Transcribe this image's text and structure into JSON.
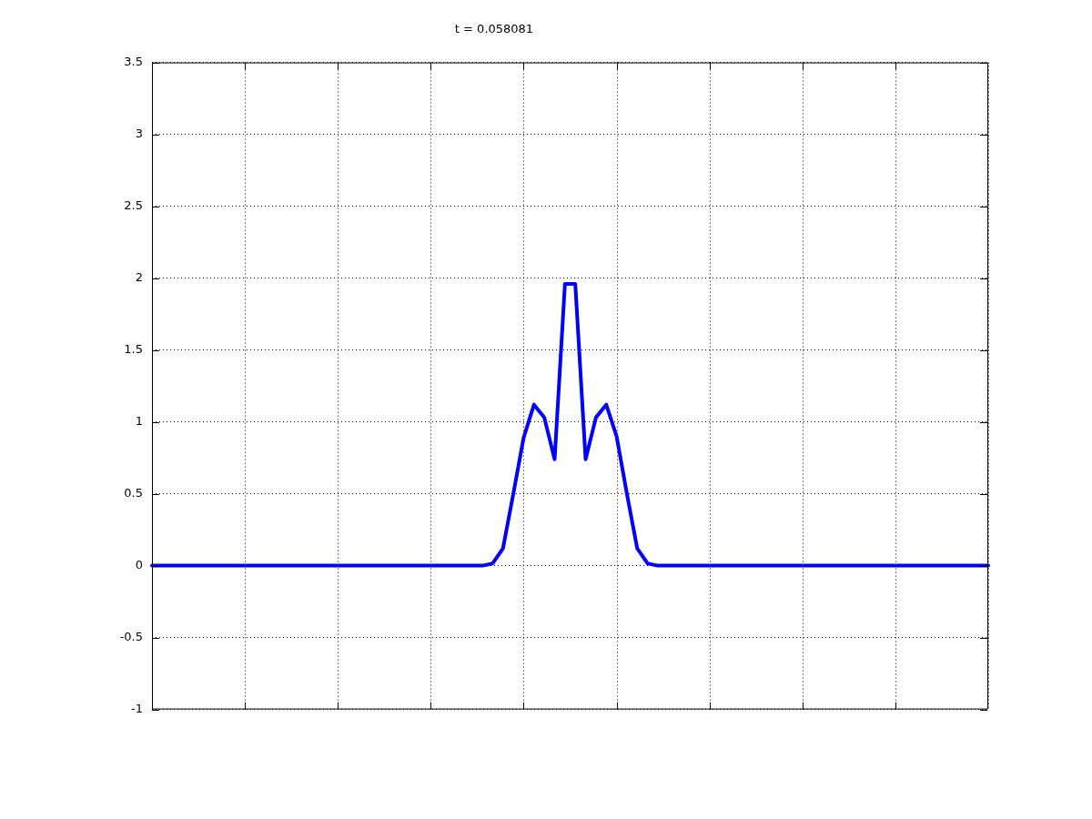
{
  "chart_data": {
    "type": "line",
    "title": "t = 0.058081",
    "categories": [
      null,
      null,
      null,
      null,
      null,
      null,
      null,
      null,
      null,
      null,
      null,
      null,
      null,
      null,
      null,
      null,
      null,
      null,
      null,
      null,
      null,
      null,
      null,
      null,
      null,
      null,
      null,
      null,
      null,
      null,
      null,
      null,
      null,
      null,
      null,
      null,
      null,
      null,
      null,
      null,
      null,
      null,
      null,
      null,
      null,
      null,
      null,
      null,
      null,
      null,
      null,
      null,
      null,
      null,
      null,
      null,
      null,
      null,
      null,
      null,
      null,
      null,
      null,
      null,
      null,
      null,
      null,
      null,
      null,
      null,
      null,
      null,
      null,
      null,
      null,
      null,
      null,
      null,
      null,
      null,
      null,
      null
    ],
    "series": [
      {
        "color": "#0000ff",
        "values": [
          0,
          0,
          0,
          0,
          0,
          0,
          0,
          0,
          0,
          0,
          0,
          0,
          0,
          0,
          0,
          0,
          0,
          0,
          0,
          0,
          0,
          0,
          0,
          0,
          0,
          0,
          0,
          0,
          0,
          0,
          0,
          0,
          0,
          0.015,
          0.12,
          0.5,
          0.89,
          1.12,
          1.03,
          0.74,
          1.96,
          1.96,
          0.74,
          1.03,
          1.12,
          0.9,
          0.5,
          0.12,
          0.015,
          0,
          0,
          0,
          0,
          0,
          0,
          0,
          0,
          0,
          0,
          0,
          0,
          0,
          0,
          0,
          0,
          0,
          0,
          0,
          0,
          0,
          0,
          0,
          0,
          0,
          0,
          0,
          0,
          0,
          0,
          0,
          0,
          0
        ]
      }
    ],
    "ylim": [
      -1,
      3.5
    ],
    "yticks": [
      -1,
      -0.5,
      0,
      0.5,
      1,
      1.5,
      2,
      2.5,
      3,
      3.5
    ],
    "grid": true,
    "legend": false,
    "marker": "none",
    "line_style": "solid"
  }
}
